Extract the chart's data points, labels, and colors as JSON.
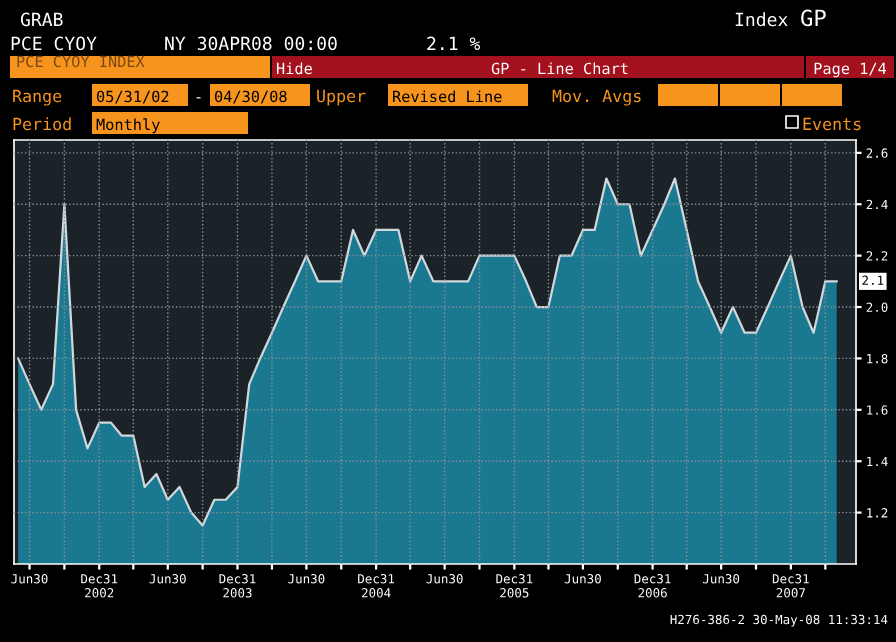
{
  "chart_data": {
    "type": "area",
    "title": "PCE CYOY INDEX",
    "annotations": [
      "GRAB",
      "PCE CYOY",
      "NY 30APR08 00:00",
      "2.1 %",
      "Index",
      "GP",
      "Hide",
      "GP - Line Chart",
      "Page 1/4",
      "Range",
      "05/31/02",
      "-",
      "04/30/08",
      "Upper",
      "Revised Line",
      "Mov. Avgs",
      "Period",
      "Monthly",
      "Events",
      "H276-386-2 30-May-08 11:33:14",
      {
        "text": "2.1",
        "x": "2008-04-30",
        "y": 2.1
      }
    ],
    "x": [
      "2002-05-31",
      "2002-06-30",
      "2002-07-31",
      "2002-08-31",
      "2002-09-30",
      "2002-10-31",
      "2002-11-30",
      "2002-12-31",
      "2003-01-31",
      "2003-02-28",
      "2003-03-31",
      "2003-04-30",
      "2003-05-31",
      "2003-06-30",
      "2003-07-31",
      "2003-08-31",
      "2003-09-30",
      "2003-10-31",
      "2003-11-30",
      "2003-12-31",
      "2004-01-31",
      "2004-02-29",
      "2004-03-31",
      "2004-04-30",
      "2004-05-31",
      "2004-06-30",
      "2004-07-31",
      "2004-08-31",
      "2004-09-30",
      "2004-10-31",
      "2004-11-30",
      "2004-12-31",
      "2005-01-31",
      "2005-02-28",
      "2005-03-31",
      "2005-04-30",
      "2005-05-31",
      "2005-06-30",
      "2005-07-31",
      "2005-08-31",
      "2005-09-30",
      "2005-10-31",
      "2005-11-30",
      "2005-12-31",
      "2006-01-31",
      "2006-02-28",
      "2006-03-31",
      "2006-04-30",
      "2006-05-31",
      "2006-06-30",
      "2006-07-31",
      "2006-08-31",
      "2006-09-30",
      "2006-10-31",
      "2006-11-30",
      "2006-12-31",
      "2007-01-31",
      "2007-02-28",
      "2007-03-31",
      "2007-04-30",
      "2007-05-31",
      "2007-06-30",
      "2007-07-31",
      "2007-08-31",
      "2007-09-30",
      "2007-10-31",
      "2007-11-30",
      "2007-12-31",
      "2008-01-31",
      "2008-02-29",
      "2008-03-31",
      "2008-04-30"
    ],
    "series": [
      {
        "color": "#1b7891",
        "values": [
          1.8,
          1.7,
          1.6,
          1.7,
          2.4,
          1.6,
          1.45,
          1.55,
          1.55,
          1.5,
          1.5,
          1.3,
          1.35,
          1.25,
          1.3,
          1.2,
          1.15,
          1.25,
          1.25,
          1.3,
          1.7,
          1.8,
          1.9,
          2.0,
          2.1,
          2.2,
          2.1,
          2.1,
          2.1,
          2.3,
          2.2,
          2.3,
          2.3,
          2.3,
          2.1,
          2.2,
          2.1,
          2.1,
          2.1,
          2.1,
          2.2,
          2.2,
          2.2,
          2.2,
          2.1,
          2.0,
          2.0,
          2.2,
          2.2,
          2.3,
          2.3,
          2.5,
          2.4,
          2.4,
          2.2,
          2.3,
          2.4,
          2.5,
          2.3,
          2.1,
          2.0,
          1.9,
          2.0,
          1.9,
          1.9,
          2.0,
          2.1,
          2.2,
          2.0,
          1.9,
          2.1,
          2.1
        ]
      }
    ],
    "xlim": [
      "2002-05-20",
      "2008-06-20"
    ],
    "xticks": [
      {
        "value": "2002-06-30",
        "label": "Jun30"
      },
      {
        "value": "2002-09-30",
        "label": null
      },
      {
        "value": "2002-12-31",
        "label": "Dec31\n2002"
      },
      {
        "value": "2003-03-31",
        "label": null
      },
      {
        "value": "2003-06-30",
        "label": "Jun30"
      },
      {
        "value": "2003-09-30",
        "label": null
      },
      {
        "value": "2003-12-31",
        "label": "Dec31\n2003"
      },
      {
        "value": "2004-03-31",
        "label": null
      },
      {
        "value": "2004-06-30",
        "label": "Jun30"
      },
      {
        "value": "2004-09-30",
        "label": null
      },
      {
        "value": "2004-12-31",
        "label": "Dec31\n2004"
      },
      {
        "value": "2005-03-31",
        "label": null
      },
      {
        "value": "2005-06-30",
        "label": "Jun30"
      },
      {
        "value": "2005-09-30",
        "label": null
      },
      {
        "value": "2005-12-31",
        "label": "Dec31\n2005"
      },
      {
        "value": "2006-03-31",
        "label": null
      },
      {
        "value": "2006-06-30",
        "label": "Jun30"
      },
      {
        "value": "2006-09-30",
        "label": null
      },
      {
        "value": "2006-12-31",
        "label": "Dec31\n2006"
      },
      {
        "value": "2007-03-31",
        "label": null
      },
      {
        "value": "2007-06-30",
        "label": "Jun30"
      },
      {
        "value": "2007-09-30",
        "label": null
      },
      {
        "value": "2007-12-31",
        "label": "Dec31\n2007"
      },
      {
        "value": "2008-03-31",
        "label": null
      }
    ],
    "ylim": [
      1.0,
      2.65
    ],
    "yticks": [
      1.2,
      1.4,
      1.6,
      1.8,
      {
        "value": 2,
        "label": "2.0"
      },
      2.2,
      2.4,
      2.6
    ],
    "grid": true,
    "line_style": "solid",
    "marker": "none"
  }
}
